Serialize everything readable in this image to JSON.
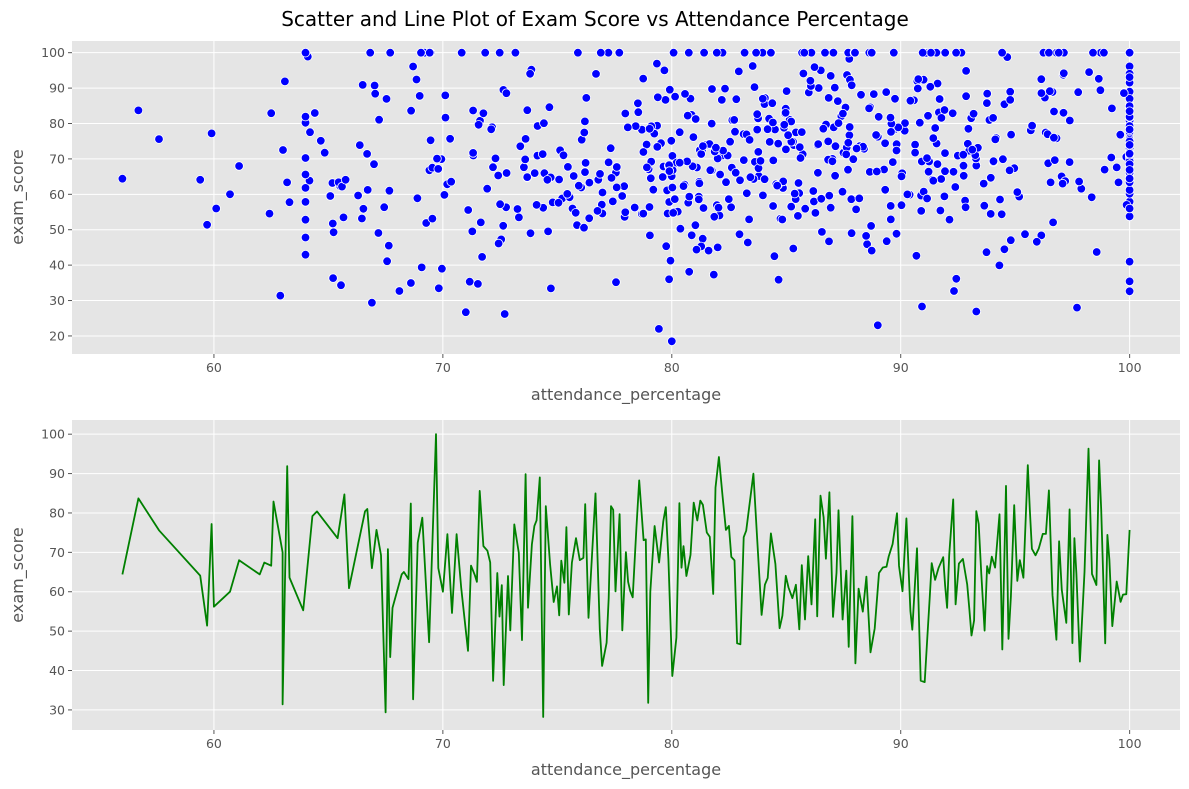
{
  "figure": {
    "title": "Scatter and Line Plot of Exam Score vs Attendance Percentage",
    "background": "#ffffff",
    "plot_background": "#e5e5e5",
    "grid_color": "#ffffff",
    "text_color": "#555555"
  },
  "chart_data": [
    {
      "type": "scatter",
      "xlabel": "attendance_percentage",
      "ylabel": "exam_score",
      "xlim": [
        53.8,
        102.2
      ],
      "ylim": [
        14.9,
        103.3
      ],
      "xticks": [
        60,
        70,
        80,
        90,
        100
      ],
      "yticks": [
        20,
        30,
        40,
        50,
        60,
        70,
        80,
        90,
        100
      ],
      "grid": true,
      "color": "#0000ff",
      "marker_edge": "#ffffff",
      "point_count": 720,
      "points_sample": [
        [
          56.0,
          64.4
        ],
        [
          56.7,
          83.7
        ],
        [
          57.6,
          75.6
        ],
        [
          59.4,
          64.1
        ],
        [
          59.7,
          51.4
        ],
        [
          59.9,
          77.2
        ],
        [
          60.1,
          56.0
        ],
        [
          60.7,
          60.0
        ],
        [
          61.1,
          68.0
        ],
        [
          62.5,
          82.9
        ],
        [
          62.9,
          31.4
        ],
        [
          63.1,
          91.9
        ],
        [
          64.1,
          98.9
        ],
        [
          66.5,
          90.9
        ],
        [
          66.9,
          29.4
        ],
        [
          68.1,
          32.7
        ],
        [
          68.7,
          96.1
        ],
        [
          69.2,
          100.0
        ],
        [
          71.0,
          26.7
        ],
        [
          72.7,
          26.2
        ],
        [
          80.0,
          18.5
        ],
        [
          89.0,
          23.0
        ],
        [
          93.3,
          26.9
        ],
        [
          97.7,
          28.0
        ],
        [
          100.0,
          35.4
        ]
      ]
    },
    {
      "type": "line",
      "xlabel": "attendance_percentage",
      "ylabel": "exam_score",
      "xlim": [
        53.8,
        102.2
      ],
      "ylim": [
        24.9,
        103.6
      ],
      "xticks": [
        60,
        70,
        80,
        90,
        100
      ],
      "yticks": [
        30,
        40,
        50,
        60,
        70,
        80,
        90,
        100
      ],
      "grid": true,
      "color": "#008000",
      "anchor_points": [
        [
          56.0,
          64.4
        ],
        [
          56.7,
          83.7
        ],
        [
          57.6,
          75.6
        ],
        [
          59.4,
          64.1
        ],
        [
          59.7,
          51.4
        ],
        [
          59.9,
          77.2
        ],
        [
          60.0,
          56.2
        ],
        [
          60.7,
          60.0
        ],
        [
          61.1,
          68.0
        ],
        [
          62.0,
          64.4
        ],
        [
          62.2,
          67.4
        ],
        [
          62.5,
          66.6
        ],
        [
          62.6,
          82.9
        ],
        [
          63.0,
          70.0
        ],
        [
          63.0,
          31.4
        ],
        [
          63.2,
          91.9
        ],
        [
          63.3,
          63.6
        ],
        [
          63.9,
          55.3
        ],
        [
          64.3,
          79.2
        ],
        [
          64.5,
          80.4
        ],
        [
          65.4,
          73.6
        ],
        [
          65.7,
          84.7
        ],
        [
          65.9,
          60.9
        ],
        [
          66.6,
          80.4
        ],
        [
          66.7,
          81.0
        ],
        [
          66.9,
          66.0
        ],
        [
          67.1,
          75.7
        ],
        [
          67.3,
          69.3
        ],
        [
          67.5,
          29.4
        ],
        [
          67.6,
          70.8
        ],
        [
          67.7,
          43.4
        ],
        [
          67.8,
          55.9
        ],
        [
          68.2,
          64.4
        ],
        [
          68.3,
          65.0
        ],
        [
          68.5,
          63.2
        ],
        [
          68.6,
          82.4
        ],
        [
          68.7,
          32.7
        ],
        [
          68.9,
          72.4
        ],
        [
          69.1,
          78.8
        ],
        [
          69.4,
          47.2
        ],
        [
          69.7,
          100.0
        ],
        [
          69.8,
          66.0
        ],
        [
          70.0,
          60.0
        ],
        [
          70.2,
          74.6
        ],
        [
          70.4,
          54.6
        ],
        [
          70.6,
          74.6
        ],
        [
          70.8,
          61.0
        ],
        [
          71.1,
          45.0
        ]
      ],
      "x_range": [
        56.0,
        100.0
      ],
      "y_range": [
        28.0,
        100.0
      ]
    }
  ]
}
